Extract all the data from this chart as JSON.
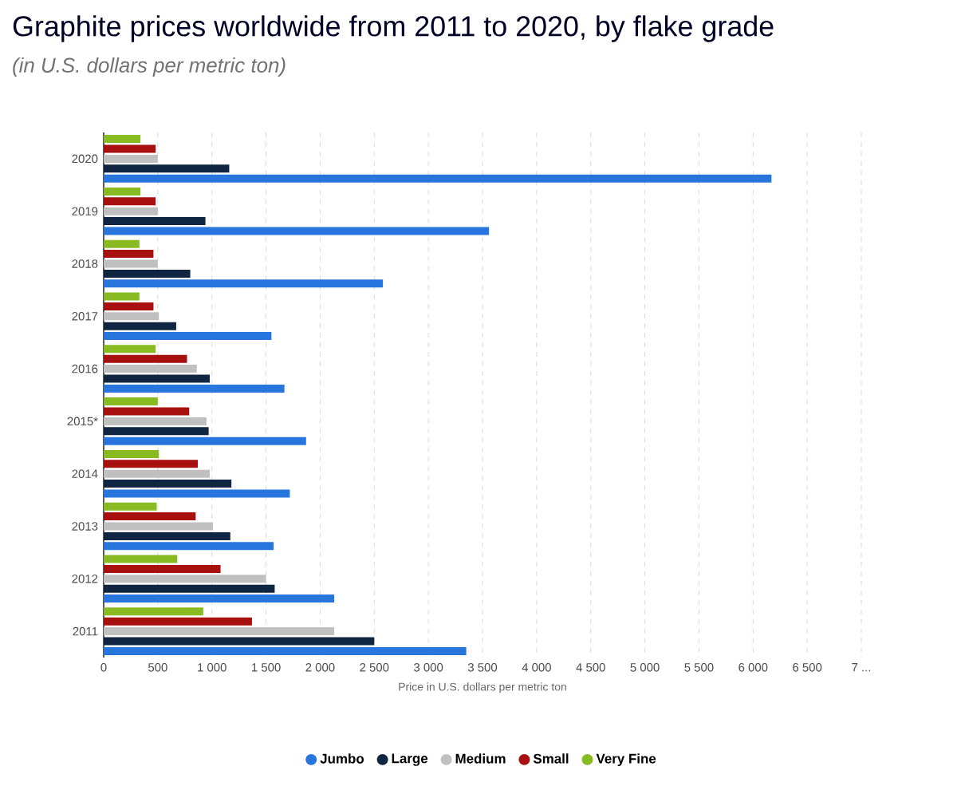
{
  "chart_data": {
    "type": "bar",
    "orientation": "horizontal",
    "title": "Graphite prices worldwide from 2011 to 2020, by flake grade",
    "subtitle": "(in U.S. dollars per metric ton)",
    "xlabel": "Price in U.S. dollars per metric ton",
    "categories": [
      "2020",
      "2019",
      "2018",
      "2017",
      "2016",
      "2015*",
      "2014",
      "2013",
      "2012",
      "2011"
    ],
    "series": [
      {
        "name": "Jumbo",
        "color": "#2876dd",
        "values": [
          6170,
          3560,
          2580,
          1550,
          1670,
          1870,
          1720,
          1570,
          2130,
          3350
        ]
      },
      {
        "name": "Large",
        "color": "#0f2541",
        "values": [
          1160,
          940,
          800,
          670,
          980,
          970,
          1180,
          1170,
          1580,
          2500
        ]
      },
      {
        "name": "Medium",
        "color": "#c0c0c0",
        "values": [
          500,
          500,
          500,
          510,
          860,
          950,
          980,
          1010,
          1500,
          2130
        ]
      },
      {
        "name": "Small",
        "color": "#a80f0f",
        "values": [
          480,
          480,
          460,
          460,
          770,
          790,
          870,
          850,
          1080,
          1370
        ]
      },
      {
        "name": "Very Fine",
        "color": "#88bb22",
        "values": [
          340,
          340,
          330,
          330,
          480,
          500,
          510,
          490,
          680,
          920
        ]
      }
    ],
    "xlim": [
      0,
      7000
    ],
    "xticks": [
      0,
      500,
      {
        "value": 1000,
        "label": "1 000"
      },
      {
        "value": 1500,
        "label": "1 500"
      },
      {
        "value": 2000,
        "label": "2 000"
      },
      {
        "value": 2500,
        "label": "2 500"
      },
      {
        "value": 3000,
        "label": "3 000"
      },
      {
        "value": 3500,
        "label": "3 500"
      },
      {
        "value": 4000,
        "label": "4 000"
      },
      {
        "value": 4500,
        "label": "4 500"
      },
      {
        "value": 5000,
        "label": "5 000"
      },
      {
        "value": 5500,
        "label": "5 500"
      },
      {
        "value": 6000,
        "label": "6 000"
      },
      {
        "value": 6500,
        "label": "6 500"
      },
      {
        "value": 7000,
        "label": "7 ..."
      }
    ],
    "grid": "x",
    "legend": "bottom"
  }
}
